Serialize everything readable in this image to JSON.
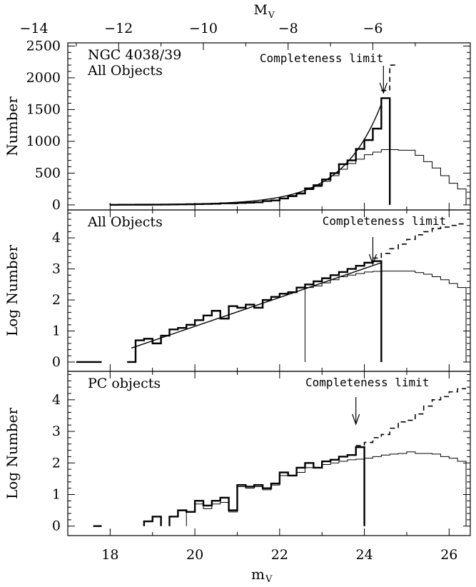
{
  "chart_data": [
    {
      "type": "histogram",
      "panel": "top",
      "annotation_lines": [
        "NGC 4038/39",
        "All Objects"
      ],
      "ylabel": "Number",
      "ylim": [
        -80,
        2550
      ],
      "yticks": [
        0,
        500,
        1000,
        1500,
        2000,
        2500
      ],
      "top_axis": {
        "label_main": "M",
        "label_sub": "V",
        "ticks": [
          -14,
          -12,
          -10,
          -8,
          -6
        ],
        "offset": 30.2
      },
      "completeness": {
        "label": "Completeness limit",
        "x": 24.45
      },
      "fit_curve": {
        "x_start": 18.5,
        "x_end": 24.4
      },
      "series": [
        {
          "name": "",
          "style": "thick",
          "x": [
            18.0,
            18.2,
            18.4,
            18.6,
            18.8,
            19.0,
            19.2,
            19.4,
            19.6,
            19.8,
            20.0,
            20.2,
            20.4,
            20.6,
            20.8,
            21.0,
            21.2,
            21.4,
            21.6,
            21.8,
            22.0,
            22.2,
            22.4,
            22.6,
            22.8,
            23.0,
            23.2,
            23.4,
            23.6,
            23.8,
            24.0,
            24.2,
            24.4
          ],
          "values": [
            1,
            2,
            2,
            3,
            3,
            4,
            5,
            6,
            8,
            10,
            12,
            15,
            18,
            25,
            25,
            30,
            35,
            40,
            60,
            70,
            100,
            140,
            180,
            260,
            310,
            400,
            500,
            640,
            700,
            880,
            1020,
            1200,
            1680
          ]
        },
        {
          "name": "",
          "style": "thin",
          "x": [
            22.0,
            22.2,
            22.4,
            22.6,
            22.8,
            23.0,
            23.2,
            23.4,
            23.6,
            23.8,
            24.0,
            24.2,
            24.4,
            24.6,
            24.8,
            25.0,
            25.2,
            25.4,
            25.6,
            25.8,
            26.0,
            26.2
          ],
          "values": [
            100,
            130,
            170,
            240,
            290,
            370,
            460,
            560,
            650,
            720,
            790,
            830,
            870,
            870,
            860,
            860,
            780,
            680,
            580,
            460,
            340,
            250
          ]
        },
        {
          "name": "",
          "style": "dashed",
          "x": [
            24.4,
            24.6
          ],
          "values": [
            1800,
            2200
          ]
        }
      ]
    },
    {
      "type": "histogram",
      "panel": "middle",
      "annotation_lines": [
        "All Objects"
      ],
      "ylabel": "Log Number",
      "ylim": [
        -0.3,
        4.9
      ],
      "yticks": [
        0,
        1,
        2,
        3,
        4
      ],
      "completeness": {
        "label": "Completeness limit",
        "x": 24.2
      },
      "fit_line": {
        "x": [
          18.5,
          24.4
        ],
        "y": [
          0.45,
          3.2
        ]
      },
      "series": [
        {
          "name": "",
          "style": "thick",
          "x": [
            17.0,
            17.2,
            17.4,
            17.6,
            17.8,
            18.0,
            18.2,
            18.4,
            18.6,
            18.8,
            19.0,
            19.2,
            19.4,
            19.6,
            19.8,
            20.0,
            20.2,
            20.4,
            20.6,
            20.8,
            21.0,
            21.2,
            21.4,
            21.6,
            21.8,
            22.0,
            22.2,
            22.4,
            22.6,
            22.8,
            23.0,
            23.2,
            23.4,
            23.6,
            23.8,
            24.0,
            24.2
          ],
          "values": [
            null,
            0,
            0,
            0,
            null,
            null,
            null,
            0,
            0.7,
            0.75,
            0.6,
            0.85,
            1.05,
            1.1,
            1.2,
            1.35,
            1.5,
            1.65,
            1.4,
            1.8,
            1.75,
            1.85,
            1.75,
            2.0,
            2.1,
            2.2,
            2.25,
            2.4,
            2.5,
            2.6,
            2.7,
            2.8,
            2.9,
            3.0,
            3.1,
            3.2,
            3.25
          ]
        },
        {
          "name": "",
          "style": "thin",
          "x": [
            22.6,
            22.8,
            23.0,
            23.2,
            23.4,
            23.6,
            23.8,
            24.0,
            24.2,
            24.4,
            24.6,
            24.8,
            25.0,
            25.2,
            25.4,
            25.6,
            25.8,
            26.0,
            26.2
          ],
          "values": [
            2.4,
            2.45,
            2.55,
            2.65,
            2.75,
            2.8,
            2.85,
            2.9,
            2.92,
            2.93,
            2.93,
            2.93,
            2.93,
            2.88,
            2.83,
            2.75,
            2.65,
            2.53,
            2.4
          ]
        },
        {
          "name": "",
          "style": "dashed",
          "x": [
            24.2,
            24.4,
            24.6,
            24.8,
            25.0,
            25.2,
            25.4,
            25.6,
            25.8,
            26.0,
            26.2
          ],
          "values": [
            3.35,
            3.5,
            3.65,
            3.8,
            3.95,
            4.1,
            4.2,
            4.3,
            4.35,
            4.4,
            4.45
          ]
        }
      ]
    },
    {
      "type": "histogram",
      "panel": "bottom",
      "annotation_lines": [
        "PC objects"
      ],
      "ylabel": "Log Number",
      "xlabel_main": "m",
      "xlabel_sub": "V",
      "xlim": [
        17.0,
        26.5
      ],
      "xticks": [
        18,
        20,
        22,
        24,
        26
      ],
      "ylim": [
        -0.3,
        4.9
      ],
      "yticks": [
        0,
        1,
        2,
        3,
        4
      ],
      "completeness": {
        "label": "Completeness limit",
        "x": 23.8
      },
      "series": [
        {
          "name": "",
          "style": "thick",
          "x": [
            17.4,
            17.6,
            17.8,
            18.0,
            18.2,
            18.4,
            18.6,
            18.8,
            19.0,
            19.2,
            19.4,
            19.6,
            19.8,
            20.0,
            20.2,
            20.4,
            20.6,
            20.8,
            21.0,
            21.2,
            21.4,
            21.6,
            21.8,
            22.0,
            22.2,
            22.4,
            22.6,
            22.8,
            23.0,
            23.2,
            23.4,
            23.6,
            23.8
          ],
          "values": [
            null,
            0,
            null,
            null,
            null,
            null,
            null,
            0.15,
            0.3,
            null,
            0.3,
            0.5,
            0.45,
            0.8,
            0.65,
            0.8,
            0.9,
            0.5,
            1.3,
            1.25,
            1.3,
            1.2,
            1.35,
            1.7,
            1.6,
            1.85,
            2.0,
            1.85,
            2.05,
            2.1,
            2.2,
            2.25,
            2.5
          ]
        },
        {
          "name": "",
          "style": "thin",
          "x": [
            19.8,
            20.0,
            20.2,
            20.4,
            20.6,
            20.8,
            21.0,
            21.2,
            21.4,
            21.6,
            21.8,
            22.0,
            22.2,
            22.4,
            22.6,
            22.8,
            23.0,
            23.2,
            23.4,
            23.6,
            23.8,
            24.0,
            24.2,
            24.4,
            24.6,
            24.8,
            25.0,
            25.2,
            25.4,
            25.6,
            25.8,
            26.0,
            26.2
          ],
          "values": [
            0.45,
            0.7,
            0.55,
            0.7,
            0.75,
            0.45,
            1.25,
            1.2,
            1.25,
            1.15,
            1.3,
            1.6,
            1.6,
            1.7,
            1.85,
            1.85,
            1.95,
            2.0,
            2.05,
            2.1,
            2.12,
            2.15,
            2.2,
            2.25,
            2.28,
            2.3,
            2.35,
            2.3,
            2.3,
            2.28,
            2.2,
            2.15,
            2.05
          ]
        },
        {
          "name": "",
          "style": "dashed",
          "x": [
            23.8,
            24.0,
            24.2,
            24.4,
            24.6,
            24.8,
            25.0,
            25.2,
            25.4,
            25.6,
            25.8,
            26.0,
            26.2
          ],
          "values": [
            2.55,
            2.65,
            2.8,
            2.9,
            3.1,
            3.3,
            3.35,
            3.55,
            3.8,
            4.0,
            4.1,
            4.25,
            4.35
          ]
        }
      ]
    }
  ]
}
